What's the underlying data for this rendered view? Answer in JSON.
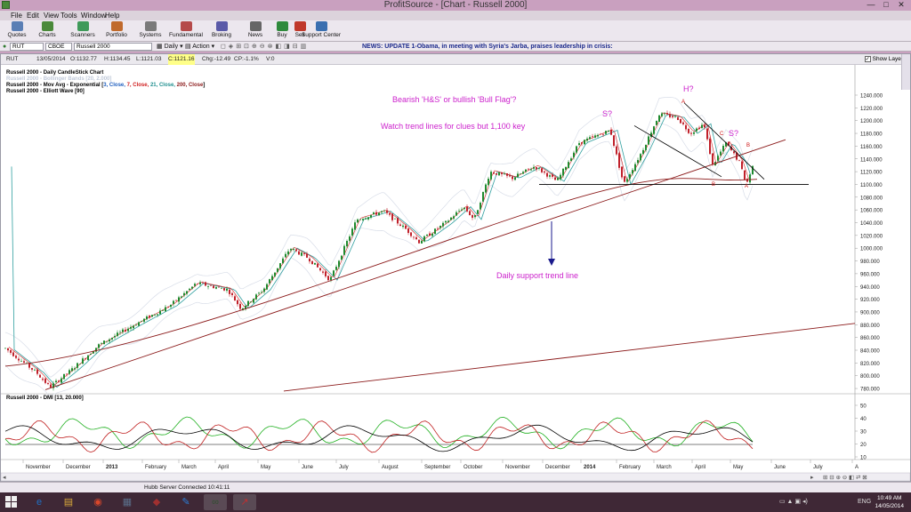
{
  "window": {
    "title": "ProfitSource - [Chart - Russell 2000]",
    "controls": [
      "—",
      "□",
      "✕"
    ]
  },
  "menu": [
    "File",
    "Edit",
    "View",
    "Tools",
    "Window",
    "Help"
  ],
  "toolbar": [
    {
      "label": "Quotes",
      "icon": "quotes-icon",
      "color": "#5a7fb5"
    },
    {
      "label": "Charts",
      "icon": "charts-icon",
      "color": "#4a8a3a"
    },
    {
      "label": "Scanners",
      "icon": "scanners-icon",
      "color": "#3f9a5a"
    },
    {
      "label": "Portfolio",
      "icon": "portfolio-icon",
      "color": "#c06a2c"
    },
    {
      "label": "Systems",
      "icon": "systems-icon",
      "color": "#7a7a7a"
    },
    {
      "label": "Fundamental",
      "icon": "fundamental-icon",
      "color": "#b54a4a"
    },
    {
      "label": "Broking",
      "icon": "broking-icon",
      "color": "#5a5aa8"
    },
    {
      "label": "News",
      "icon": "news-icon",
      "color": "#666666"
    },
    {
      "label": "Buy",
      "icon": "buy-icon",
      "color": "#2f8a3c"
    },
    {
      "label": "Sell",
      "icon": "sell-icon",
      "color": "#c0392b"
    },
    {
      "label": "Support Center",
      "icon": "support-icon",
      "color": "#3a6fb0"
    }
  ],
  "symbolbar": {
    "symbol": "RUT",
    "exchange": "CBOE",
    "name": "Russell 2000",
    "period": "Daily",
    "action": "Action",
    "news": "NEWS: UPDATE 1-Obama, in meeting with Syria's Jarba, praises leadership in crisis:"
  },
  "infostrip": {
    "symbol": "RUT",
    "date": "13/05/2014",
    "open": "O:1132.77",
    "high": "H:1134.45",
    "low": "L:1121.03",
    "close": "C:1121.16",
    "change": "Chg:-12.49",
    "change_pct": "CP:-1.1%",
    "volume": "V:0",
    "show_layer": "Show Layer"
  },
  "legend": {
    "line1": "Russell 2000 - Daily CandleStick Chart",
    "line2": "Russell 2000 - Bollinger Bands [20, 2.000]",
    "line3_prefix": "Russell 2000 - Mov Avg - Exponential [",
    "ema_parts": [
      {
        "text": "3, Close, ",
        "color": "#1f5fbf"
      },
      {
        "text": "7, Close, ",
        "color": "#d02020"
      },
      {
        "text": "21, Close, ",
        "color": "#1f8f8f"
      },
      {
        "text": "200, Close",
        "color": "#8b1a1a"
      }
    ],
    "line3_suffix": "]",
    "line4": "Russell 2000 - Elliott Wave [90]"
  },
  "annotations": {
    "line1": "Bearish 'H&S' or bullish 'Bull Flag'?",
    "line2": "Watch trend lines for clues but 1,100 key",
    "support": "Daily support trend line",
    "s_left": "S?",
    "head": "H?",
    "s_right": "S?"
  },
  "wave_labels": [
    "A",
    "B",
    "C",
    "B",
    "A"
  ],
  "colors": {
    "annotation": "#cc22cc",
    "ema200": "#8b1a1a",
    "arrow": "#1a1a8c",
    "wave": "#cc1111"
  },
  "price_axis": [
    "1240.000",
    "1220.000",
    "1200.000",
    "1180.000",
    "1160.000",
    "1140.000",
    "1120.000",
    "1100.000",
    "1080.000",
    "1060.000",
    "1040.000",
    "1020.000",
    "1000.000",
    "980.000",
    "960.000",
    "940.000",
    "920.000",
    "900.000",
    "880.000",
    "860.000",
    "840.000",
    "820.000",
    "800.000",
    "780.000"
  ],
  "dmi": {
    "label": "Russell 2000 - DMI [13, 20.000]",
    "axis": [
      "50",
      "40",
      "30",
      "20",
      "10"
    ]
  },
  "time_axis": [
    "November",
    "December",
    "2013",
    "February",
    "March",
    "April",
    "May",
    "June",
    "July",
    "August",
    "September",
    "October",
    "November",
    "December",
    "2014",
    "February",
    "March",
    "April",
    "May",
    "June",
    "July",
    "A"
  ],
  "status": "Hubb Server Connected 10:41:11",
  "taskbar": {
    "time": "10:49 AM",
    "date": "14/05/2014",
    "lang": "ENG",
    "apps": [
      {
        "name": "internet-explorer-icon",
        "glyph": "e",
        "color": "#1f6fc4"
      },
      {
        "name": "file-explorer-icon",
        "glyph": "▤",
        "color": "#d9a93a"
      },
      {
        "name": "chrome-icon",
        "glyph": "◉",
        "color": "#d9472b"
      },
      {
        "name": "calculator-icon",
        "glyph": "▦",
        "color": "#5a6f8a"
      },
      {
        "name": "paint-icon",
        "glyph": "✎",
        "color": "#2b7fd9"
      },
      {
        "name": "app-icon",
        "glyph": "◆",
        "color": "#a03030"
      },
      {
        "name": "trading-app-icon",
        "glyph": "∞",
        "color": "#2f4f2f"
      },
      {
        "name": "profitsource-icon",
        "glyph": "↗",
        "color": "#c03030"
      }
    ]
  }
}
